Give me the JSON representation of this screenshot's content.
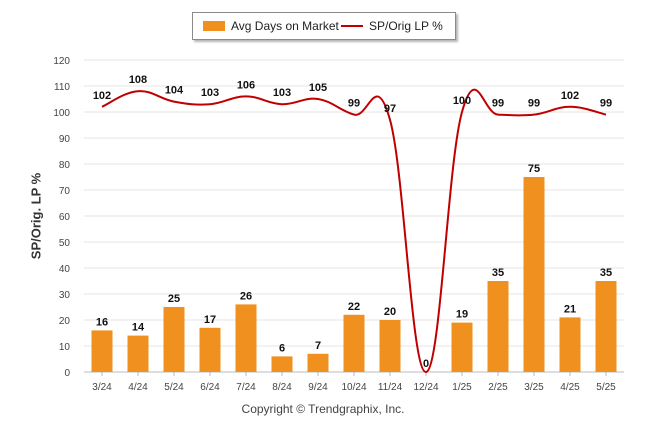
{
  "chart_data": {
    "type": "bar",
    "categories": [
      "3/24",
      "4/24",
      "5/24",
      "6/24",
      "7/24",
      "8/24",
      "9/24",
      "10/24",
      "11/24",
      "12/24",
      "1/25",
      "2/25",
      "3/25",
      "4/25",
      "5/25"
    ],
    "series": [
      {
        "name": "Avg Days on Market",
        "type": "bar",
        "color": "#f0901e",
        "values": [
          16,
          14,
          25,
          17,
          26,
          6,
          7,
          22,
          20,
          0,
          19,
          35,
          75,
          21,
          35
        ]
      },
      {
        "name": "SP/Orig LP %",
        "type": "line",
        "color": "#c00000",
        "values": [
          102,
          108,
          104,
          103,
          106,
          103,
          105,
          99,
          97,
          null,
          100,
          99,
          99,
          102,
          99
        ]
      }
    ],
    "ylabel": "SP/Orig. LP %",
    "ylim": [
      0,
      120
    ],
    "yticks": [
      0,
      10,
      20,
      30,
      40,
      50,
      60,
      70,
      80,
      90,
      100,
      110,
      120
    ],
    "grid": true,
    "legend_position": "top-center"
  },
  "legend": {
    "bar_label": "Avg Days on Market",
    "line_label": "SP/Orig LP %"
  },
  "footer": {
    "copyright": "Copyright © Trendgraphix, Inc."
  }
}
